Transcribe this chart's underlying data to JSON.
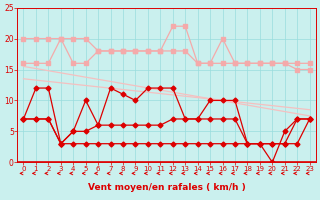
{
  "x": [
    0,
    1,
    2,
    3,
    4,
    5,
    6,
    7,
    8,
    9,
    10,
    11,
    12,
    13,
    14,
    15,
    16,
    17,
    18,
    19,
    20,
    21,
    22,
    23
  ],
  "rafales_high": [
    20,
    20,
    20,
    20,
    20,
    20,
    18,
    18,
    18,
    18,
    18,
    18,
    22,
    22,
    16,
    16,
    20,
    16,
    16,
    16,
    16,
    16,
    16,
    16
  ],
  "rafales_low": [
    16,
    16,
    16,
    20,
    16,
    16,
    18,
    18,
    18,
    18,
    18,
    18,
    18,
    18,
    16,
    16,
    16,
    16,
    16,
    16,
    16,
    16,
    15,
    15
  ],
  "trend1_x": [
    0,
    23
  ],
  "trend1_y": [
    15.5,
    7.5
  ],
  "trend2_x": [
    0,
    23
  ],
  "trend2_y": [
    13.5,
    8.5
  ],
  "vent_spiky": [
    7,
    12,
    12,
    3,
    5,
    10,
    6,
    12,
    11,
    10,
    12,
    12,
    12,
    7,
    7,
    10,
    10,
    10,
    3,
    3,
    0,
    5,
    7,
    7
  ],
  "vent_mean": [
    7,
    7,
    7,
    3,
    5,
    5,
    6,
    6,
    6,
    6,
    6,
    6,
    7,
    7,
    7,
    7,
    7,
    7,
    3,
    3,
    3,
    3,
    7,
    7
  ],
  "wind_min": [
    7,
    7,
    7,
    3,
    3,
    3,
    3,
    3,
    3,
    3,
    3,
    3,
    3,
    3,
    3,
    3,
    3,
    3,
    3,
    3,
    3,
    3,
    3,
    7
  ],
  "ylim": [
    0,
    25
  ],
  "xlim": [
    -0.5,
    23.5
  ],
  "bg_color": "#caf0ee",
  "color_light": "#f4aaaa",
  "color_dark": "#dd0000",
  "color_trend": "#f4c0c0",
  "grid_color": "#99dddd",
  "tick_color": "#dd0000",
  "xlabel": "Vent moyen/en rafales ( km/h )",
  "yticks": [
    0,
    5,
    10,
    15,
    20,
    25
  ],
  "xticks": [
    0,
    1,
    2,
    3,
    4,
    5,
    6,
    7,
    8,
    9,
    10,
    11,
    12,
    13,
    14,
    15,
    16,
    17,
    18,
    19,
    20,
    21,
    22,
    23
  ]
}
